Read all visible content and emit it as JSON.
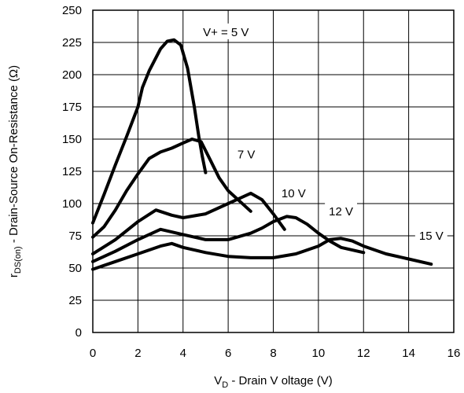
{
  "chart_data": {
    "type": "line",
    "xlabel": {
      "prefix": "V",
      "sub": "D",
      "suffix": " - Drain V oltage (V)"
    },
    "ylabel": {
      "prefix": "r",
      "sub": "DS(on)",
      "suffix": " - Drain-Source On-Resistance (Ω)"
    },
    "xlim": [
      0,
      16
    ],
    "ylim": [
      0,
      250
    ],
    "xticks": [
      0,
      2,
      4,
      6,
      8,
      10,
      12,
      14,
      16
    ],
    "yticks": [
      0,
      25,
      50,
      75,
      100,
      125,
      150,
      175,
      200,
      225,
      250
    ],
    "grid": true,
    "series": [
      {
        "name": "V+ = 5 V",
        "x": [
          0,
          0.5,
          1,
          1.5,
          2,
          2.2,
          2.5,
          3,
          3.3,
          3.6,
          3.9,
          4.2,
          4.5,
          4.7,
          4.85,
          5.0
        ],
        "y": [
          85,
          107,
          130,
          152,
          175,
          190,
          203,
          220,
          226,
          227,
          223,
          205,
          175,
          152,
          137,
          124
        ]
      },
      {
        "name": "7 V",
        "x": [
          0,
          0.5,
          1,
          1.5,
          2,
          2.5,
          3,
          3.5,
          4,
          4.4,
          4.8,
          5.2,
          5.6,
          6,
          6.5,
          7
        ],
        "y": [
          74,
          82,
          95,
          110,
          123,
          135,
          140,
          143,
          147,
          150,
          148,
          134,
          120,
          110,
          102,
          94
        ]
      },
      {
        "name": "10 V",
        "x": [
          0,
          1,
          2,
          2.8,
          3.5,
          4,
          5,
          6,
          6.5,
          7,
          7.5,
          8,
          8.5
        ],
        "y": [
          61,
          72,
          86,
          95,
          91,
          89,
          92,
          100,
          104,
          108,
          103,
          92,
          80
        ]
      },
      {
        "name": "12 V",
        "x": [
          0,
          1,
          2,
          3,
          4,
          5,
          6,
          7,
          7.5,
          8,
          8.6,
          9,
          9.5,
          10,
          10.5,
          11,
          12
        ],
        "y": [
          55,
          63,
          72,
          80,
          76,
          72,
          72,
          77,
          81,
          86,
          90,
          89,
          84,
          77,
          71,
          66,
          62
        ]
      },
      {
        "name": "15 V",
        "x": [
          0,
          1,
          2,
          3,
          3.5,
          4,
          5,
          6,
          7,
          8,
          9,
          10,
          10.5,
          11,
          11.5,
          12,
          13,
          14,
          15
        ],
        "y": [
          49,
          55,
          61,
          67,
          69,
          66,
          62,
          59,
          58,
          58,
          61,
          67,
          72,
          73,
          71,
          67,
          61,
          57,
          53
        ]
      }
    ]
  },
  "curve_labels": [
    {
      "text": "V+ = 5 V",
      "x": 5.9,
      "y": 233
    },
    {
      "text": "7 V",
      "x": 6.8,
      "y": 138
    },
    {
      "text": "10 V",
      "x": 8.9,
      "y": 108
    },
    {
      "text": "12 V",
      "x": 11.0,
      "y": 94
    },
    {
      "text": "15 V",
      "x": 15.0,
      "y": 75
    }
  ]
}
